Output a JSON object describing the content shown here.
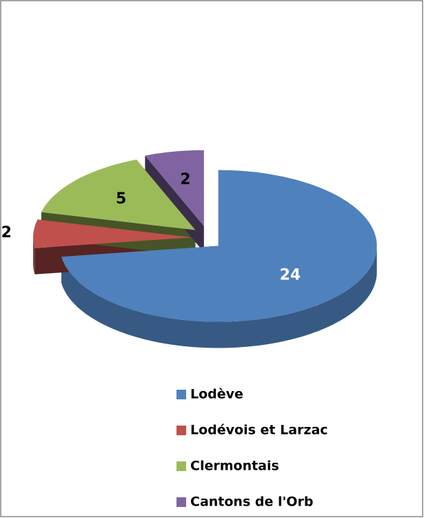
{
  "chart_data": {
    "type": "pie3d",
    "categories": [
      "Lodève",
      "Lodévois et Larzac",
      "Clermontais",
      "Cantons de l'Orb"
    ],
    "values": [
      24,
      2,
      5,
      2
    ],
    "colors": [
      "#4f81bd",
      "#c0504d",
      "#9bbb59",
      "#8064a2"
    ]
  }
}
